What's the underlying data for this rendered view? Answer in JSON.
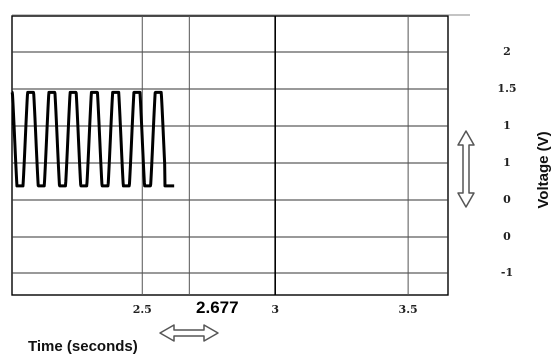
{
  "chart_data": {
    "type": "line",
    "xlabel": "Time (seconds)",
    "ylabel": "Voltage (V)",
    "xlim": [
      2.01,
      3.65
    ],
    "ylim": [
      -1.4,
      2.18
    ],
    "x_ticks": [
      2.5,
      3,
      3.5
    ],
    "x_tick_labels": [
      "2.5",
      "3",
      "3.5"
    ],
    "y_tick_labels": [
      "2",
      "1.5",
      "1",
      "1",
      "0",
      "0",
      "-1"
    ],
    "grid": true,
    "cursor": {
      "x": 2.677,
      "label": "2.677"
    },
    "highlight_x": 3,
    "signal": {
      "start": 2.0,
      "end": 2.62,
      "period": 0.08,
      "high": 1.2,
      "low": 0.0,
      "final": 0.0
    }
  },
  "icons": {
    "vertical_scroll_arrow": "vertical-double-arrow",
    "horizontal_scroll_arrow": "horizontal-double-arrow"
  }
}
